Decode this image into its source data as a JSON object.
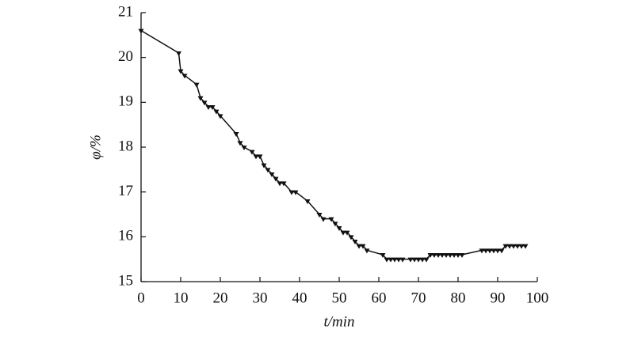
{
  "chart_data": {
    "type": "line",
    "x_label": "t/min",
    "y_label": "φ/%",
    "xlim": [
      0,
      100
    ],
    "xticks": [
      0,
      10,
      20,
      30,
      40,
      50,
      60,
      70,
      80,
      90,
      100
    ],
    "ylim": [
      15,
      21
    ],
    "yticks": [
      15,
      16,
      17,
      18,
      19,
      20,
      21
    ],
    "marker": "triangle-down",
    "series": [
      {
        "color": "#111111",
        "x": [
          0,
          9.5,
          10,
          11,
          14,
          15,
          16,
          17,
          18,
          19,
          20,
          24,
          25,
          26,
          28,
          29,
          30,
          31,
          32,
          33,
          34,
          35,
          36,
          38,
          39,
          42,
          45,
          46,
          48,
          49,
          50,
          51,
          52,
          53,
          54,
          55,
          56,
          57,
          61,
          62,
          63,
          64,
          65,
          66,
          68,
          69,
          70,
          71,
          72,
          73,
          74,
          75,
          76,
          77,
          78,
          79,
          80,
          81,
          86,
          87,
          88,
          89,
          90,
          91,
          92,
          93,
          94,
          95,
          96,
          97
        ],
        "values": [
          20.6,
          20.1,
          19.7,
          19.6,
          19.4,
          19.1,
          19.0,
          18.9,
          18.9,
          18.8,
          18.7,
          18.3,
          18.1,
          18.0,
          17.9,
          17.8,
          17.8,
          17.6,
          17.5,
          17.4,
          17.3,
          17.2,
          17.2,
          17.0,
          17.0,
          16.8,
          16.5,
          16.4,
          16.4,
          16.3,
          16.2,
          16.1,
          16.1,
          16.0,
          15.9,
          15.8,
          15.8,
          15.7,
          15.6,
          15.5,
          15.5,
          15.5,
          15.5,
          15.5,
          15.5,
          15.5,
          15.5,
          15.5,
          15.5,
          15.6,
          15.6,
          15.6,
          15.6,
          15.6,
          15.6,
          15.6,
          15.6,
          15.6,
          15.7,
          15.7,
          15.7,
          15.7,
          15.7,
          15.7,
          15.8,
          15.8,
          15.8,
          15.8,
          15.8,
          15.8
        ]
      }
    ]
  }
}
